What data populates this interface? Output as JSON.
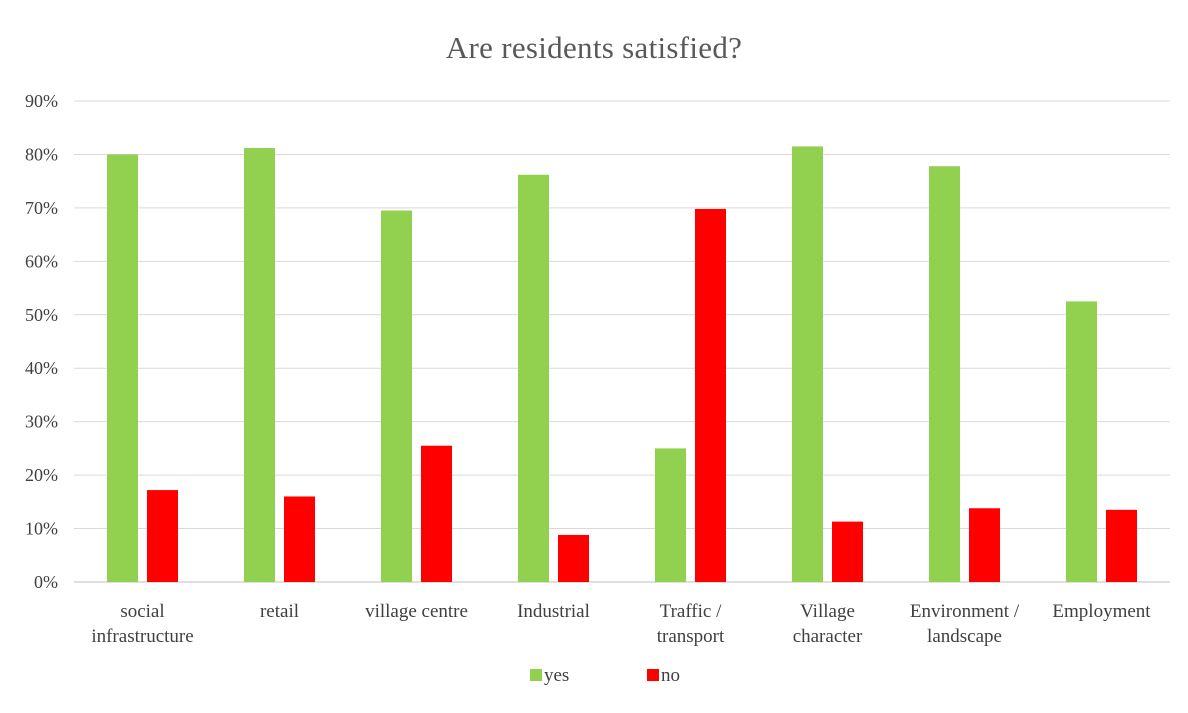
{
  "chart_data": {
    "type": "bar",
    "title": "Are residents satisfied?",
    "categories": [
      [
        "social",
        "infrastructure"
      ],
      [
        "retail"
      ],
      [
        "village centre"
      ],
      [
        "Industrial"
      ],
      [
        "Traffic /",
        "transport"
      ],
      [
        "Village",
        "character"
      ],
      [
        "Environment /",
        "landscape"
      ],
      [
        "Employment"
      ]
    ],
    "series": [
      {
        "name": "yes",
        "color": "#92d050",
        "values": [
          0.8,
          0.812,
          0.695,
          0.762,
          0.25,
          0.815,
          0.778,
          0.525
        ]
      },
      {
        "name": "no",
        "color": "#ff0000",
        "values": [
          0.172,
          0.16,
          0.255,
          0.088,
          0.698,
          0.113,
          0.138,
          0.135
        ]
      }
    ],
    "y_ticks": [
      "0%",
      "10%",
      "20%",
      "30%",
      "40%",
      "50%",
      "60%",
      "70%",
      "80%",
      "90%"
    ],
    "ylim": [
      0,
      0.9
    ],
    "grid": true,
    "legend_position": "bottom",
    "xlabel": "",
    "ylabel": ""
  }
}
